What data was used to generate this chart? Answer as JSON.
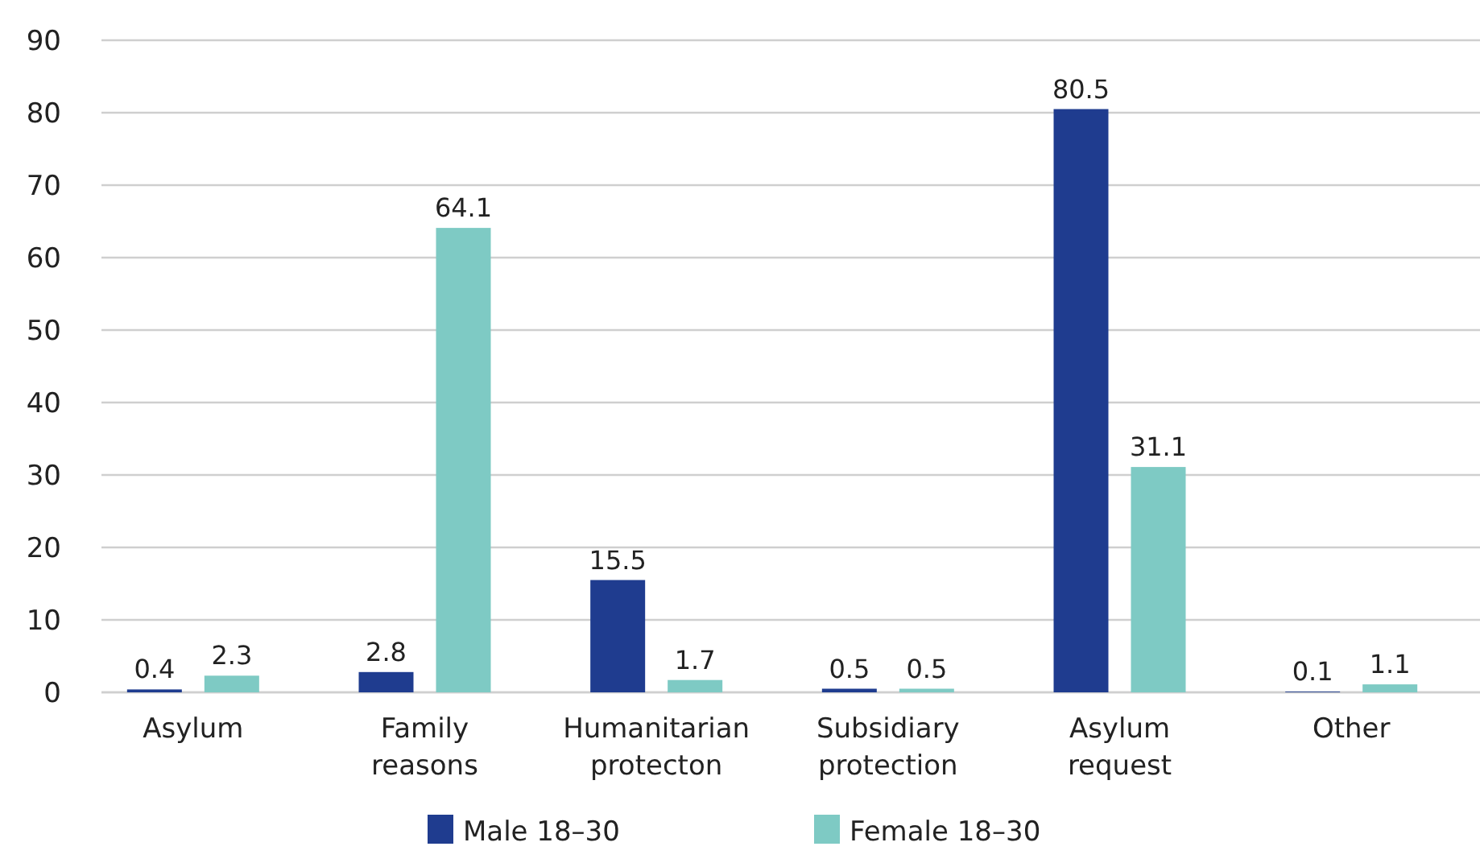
{
  "chart_data": {
    "type": "bar",
    "categories": [
      "Asylum",
      "Family reasons",
      "Humanitarian protecton",
      "Subsidiary protection",
      "Asylum request",
      "Other"
    ],
    "series": [
      {
        "name": "Male 18–30",
        "color": "#1f3c8f",
        "values": [
          0.4,
          2.8,
          15.5,
          0.5,
          80.5,
          0.1
        ]
      },
      {
        "name": "Female 18–30",
        "color": "#7ecac4",
        "values": [
          2.3,
          64.1,
          1.7,
          0.5,
          31.1,
          1.1
        ]
      }
    ],
    "ylim": [
      0,
      90
    ],
    "yticks": [
      0,
      10,
      20,
      30,
      40,
      50,
      60,
      70,
      80,
      90
    ],
    "grid": "y",
    "legend": "bottom",
    "data_labels": true
  }
}
